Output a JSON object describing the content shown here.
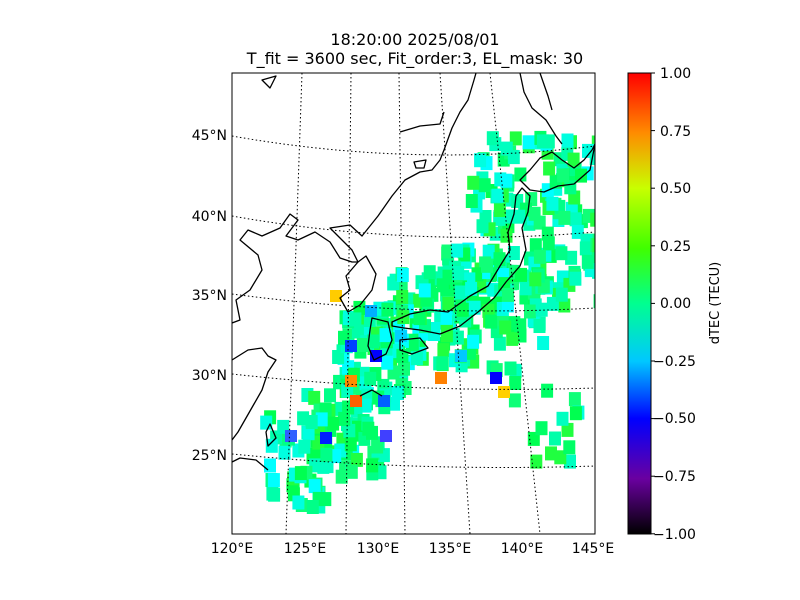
{
  "title_line1": "18:20:00 2025/08/01",
  "title_line2": "T_fit = 3600 sec, Fit_order:3, EL_mask: 30",
  "lat_labels": [
    "45°N",
    "40°N",
    "35°N",
    "30°N",
    "25°N"
  ],
  "lon_labels": [
    "120°E",
    "125°E",
    "130°E",
    "135°E",
    "140°E",
    "145°E"
  ],
  "colorbar": {
    "label": "dTEC (TECU)",
    "ticks": [
      "1.00",
      "0.75",
      "0.50",
      "0.25",
      "0.00",
      "−0.25",
      "−0.50",
      "−0.75",
      "−1.00"
    ],
    "min": -1.0,
    "max": 1.0,
    "colormap": [
      "#000000",
      "#6a00a0",
      "#0000ff",
      "#00c8ff",
      "#00ff90",
      "#40ff00",
      "#c8ff00",
      "#ff8c00",
      "#ff0000"
    ]
  },
  "map": {
    "lon_range": [
      120,
      145
    ],
    "lat_range": [
      20,
      49
    ],
    "frame_color": "#000000",
    "coastline_color": "#000000",
    "gridline_style": "dotted"
  }
}
